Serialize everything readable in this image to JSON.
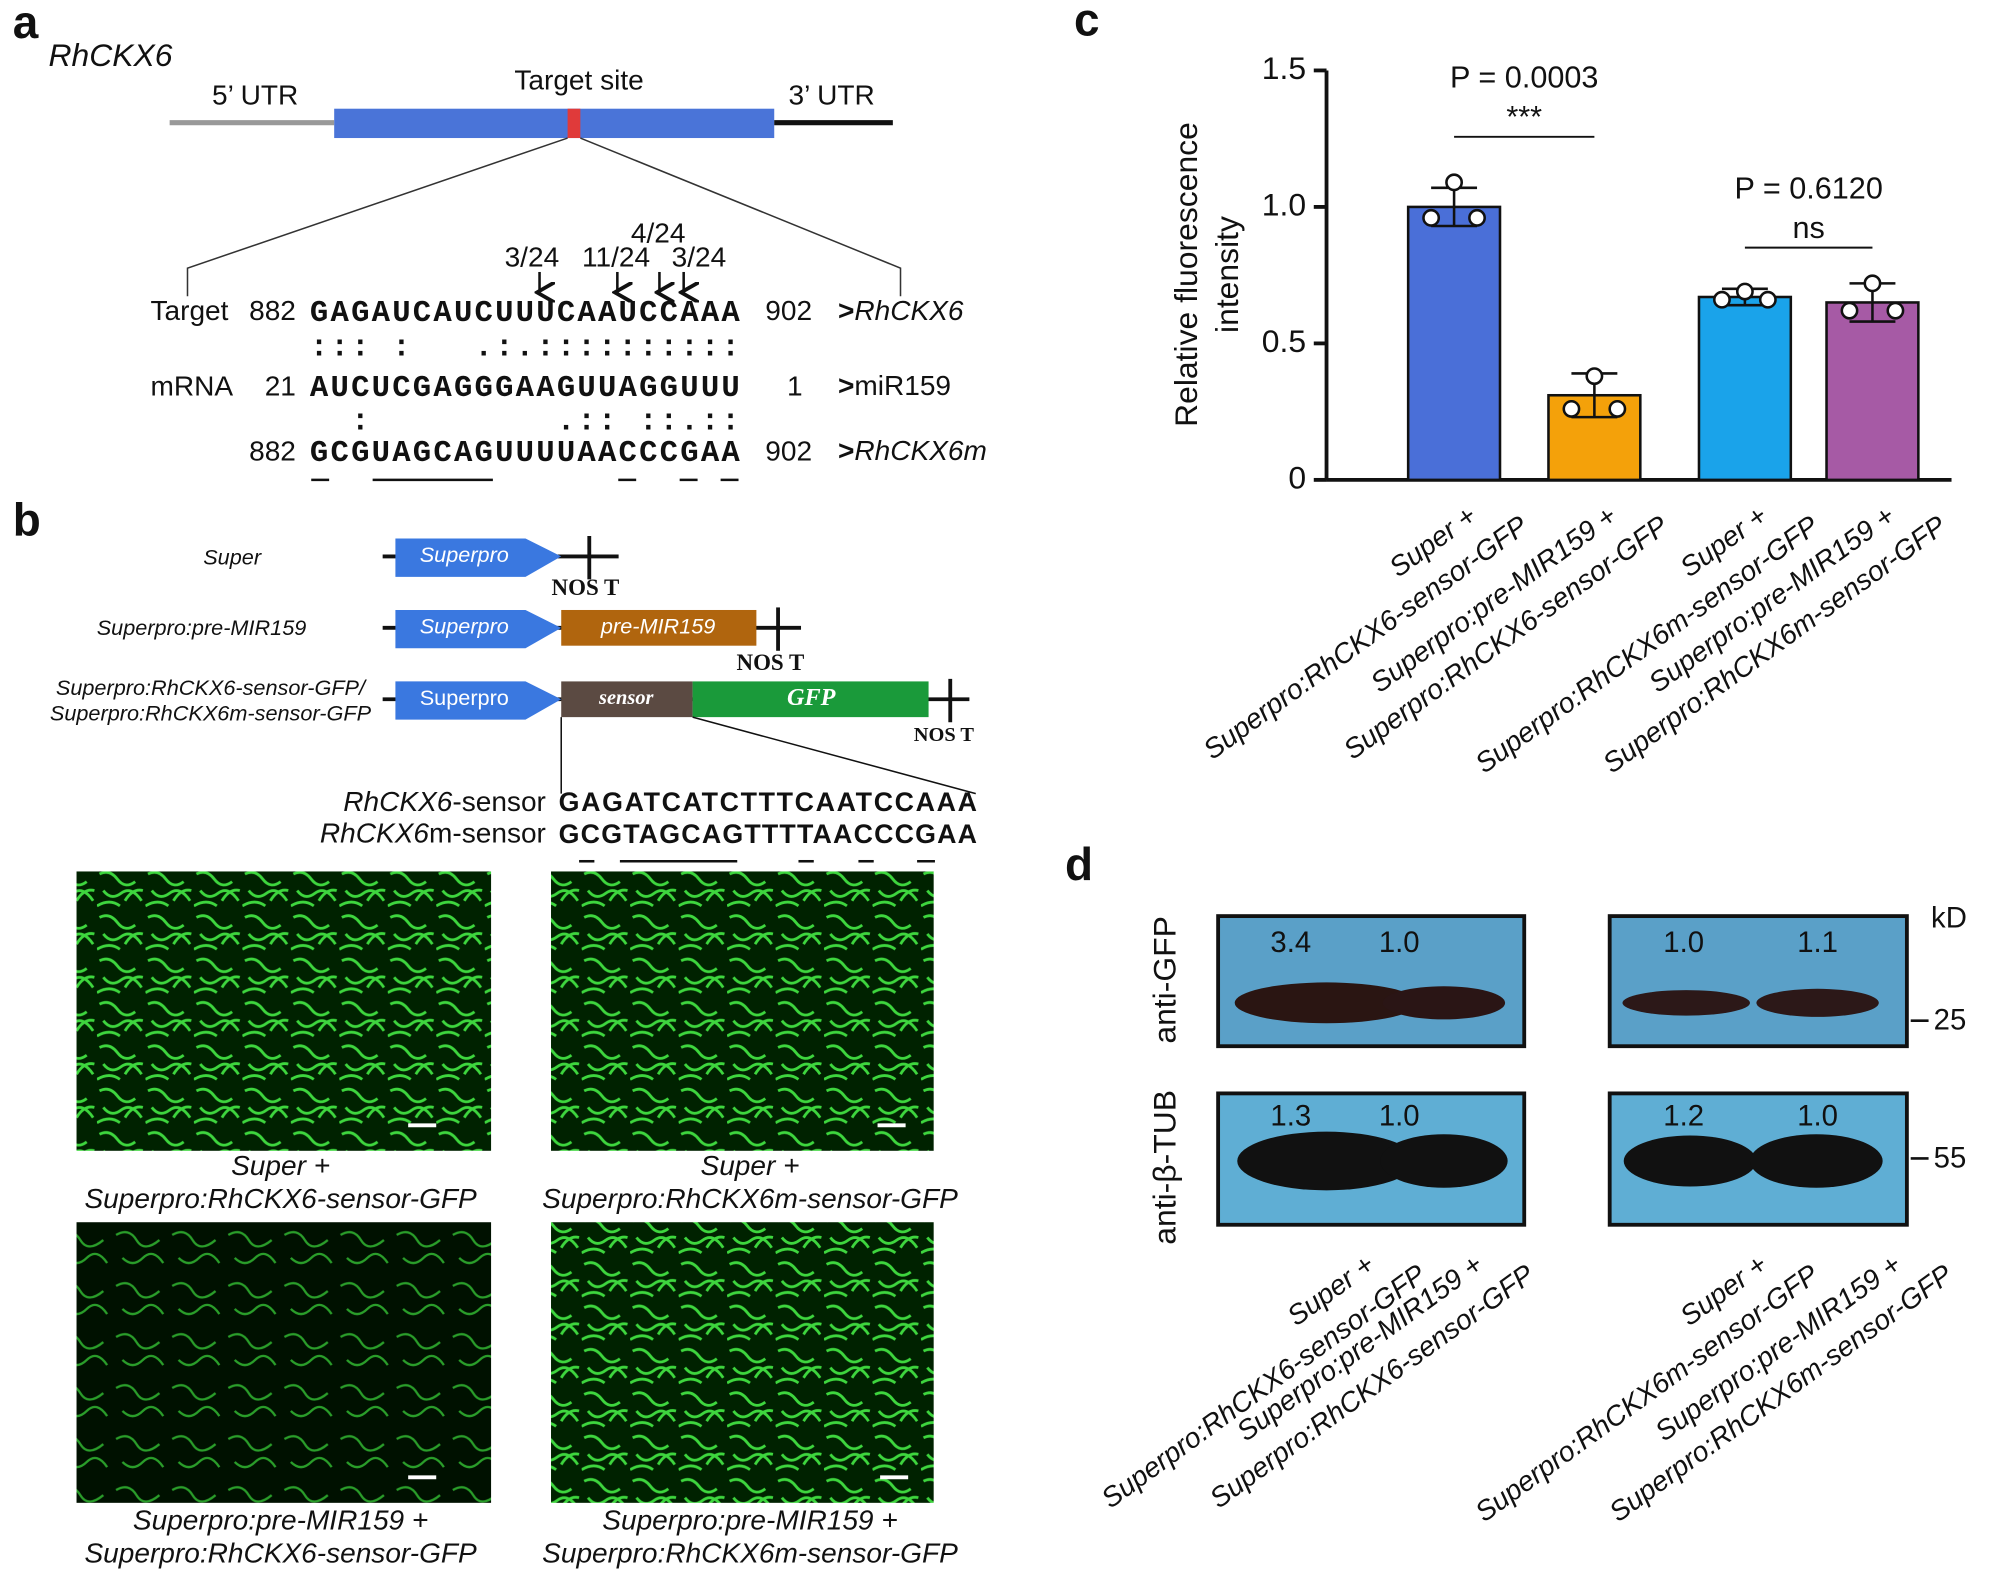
{
  "panel_labels": [
    "a",
    "b",
    "c",
    "d"
  ],
  "panel_a": {
    "gene": "RhCKX6",
    "utr5": "5’ UTR",
    "target_site": "Target site",
    "utr3": "3’ UTR",
    "cleavage": [
      "3/24",
      "11/24",
      "4/24",
      "3/24"
    ],
    "rows": [
      {
        "label": "Target",
        "start": "882",
        "seq": "GAGAUCAUCUUUCAAUCCAAA",
        "end": "902",
        "mark": ">",
        "name": "RhCKX6"
      },
      {
        "label": "mRNA",
        "start": "21",
        "seq": "AUCUCGAGGGAAGUUAGGUUU",
        "end": "1",
        "mark": ">",
        "name": "miR159"
      },
      {
        "label": "",
        "start": "882",
        "seq": "GCGUAGCAGUUUUAACCCGAA",
        "end": "902",
        "mark": ">",
        "name": "RhCKX6m"
      }
    ],
    "match1": "::: :   .:.::::::::::",
    "match2": "  :         .:: ::.::"
  },
  "panel_b": {
    "constructs": [
      "Super",
      "Superpro:pre-MIR159",
      "Superpro:RhCKX6-sensor-GFP/",
      "Superpro:RhCKX6m-sensor-GFP"
    ],
    "promoter": "Superpro",
    "terminator": "NOS T",
    "pre": "pre-MIR159",
    "sensor": "sensor",
    "gfp": "GFP",
    "sensor_rows": [
      {
        "gene": "RhCKX6",
        "suffix": "-sensor",
        "seq": "GAGATCATCTTTCAATCCAAA"
      },
      {
        "gene": "RhCKX6",
        "suffix": "m-sensor",
        "seq": "GCGTAGCAGTTTTAACCCGAA"
      }
    ],
    "captions": [
      [
        "Super +",
        "Superpro:RhCKX6-sensor-GFP"
      ],
      [
        "Super +",
        "Superpro:RhCKX6m-sensor-GFP"
      ],
      [
        "Superpro:pre-MIR159 +",
        "Superpro:RhCKX6-sensor-GFP"
      ],
      [
        "Superpro:pre-MIR159 +",
        "Superpro:RhCKX6m-sensor-GFP"
      ]
    ]
  },
  "chart_data": {
    "type": "bar",
    "ylabel": [
      "Relative fluorescence",
      "intensity"
    ],
    "categories": [
      [
        "Super +",
        "Superpro:RhCKX6-sensor-GFP"
      ],
      [
        "Superpro:pre-MIR159 +",
        "Superpro:RhCKX6-sensor-GFP"
      ],
      [
        "Super +",
        "Superpro:RhCKX6m-sensor-GFP"
      ],
      [
        "Superpro:pre-MIR159 +",
        "Superpro:RhCKX6m-sensor-GFP"
      ]
    ],
    "values": [
      1.0,
      0.31,
      0.67,
      0.65
    ],
    "errors": [
      0.07,
      0.08,
      0.03,
      0.07
    ],
    "points": [
      [
        0.96,
        1.09,
        0.96
      ],
      [
        0.26,
        0.38,
        0.26
      ],
      [
        0.66,
        0.69,
        0.66
      ],
      [
        0.62,
        0.72,
        0.62
      ]
    ],
    "colors": [
      "#4a6fd8",
      "#f4a10a",
      "#1aa3ea",
      "#a65aa5"
    ],
    "ylim": [
      0,
      1.5
    ],
    "yticks": [
      0,
      0.5,
      {
        "value": 1,
        "label": "1.0"
      },
      1.5
    ],
    "annotations": [
      {
        "text": "P = 0.0003",
        "stars": "***",
        "from": 0,
        "to": 1
      },
      {
        "text": "P = 0.6120",
        "stars": "ns",
        "from": 2,
        "to": 3
      }
    ]
  },
  "panel_d": {
    "rows": [
      "anti-GFP",
      "anti-β-TUB"
    ],
    "unit": "kD",
    "markers": [
      "25",
      "55"
    ],
    "gfp_values": [
      "3.4",
      "1.0",
      "1.0",
      "1.1"
    ],
    "tub_values": [
      "1.3",
      "1.0",
      "1.2",
      "1.0"
    ],
    "lanes": [
      [
        "Super +",
        "Superpro:RhCKX6-sensor-GFP"
      ],
      [
        "Superpro:pre-MIR159 +",
        "Superpro:RhCKX6-sensor-GFP"
      ],
      [
        "Super +",
        "Superpro:RhCKX6m-sensor-GFP"
      ],
      [
        "Superpro:pre-MIR159 +",
        "Superpro:RhCKX6m-sensor-GFP"
      ]
    ]
  }
}
